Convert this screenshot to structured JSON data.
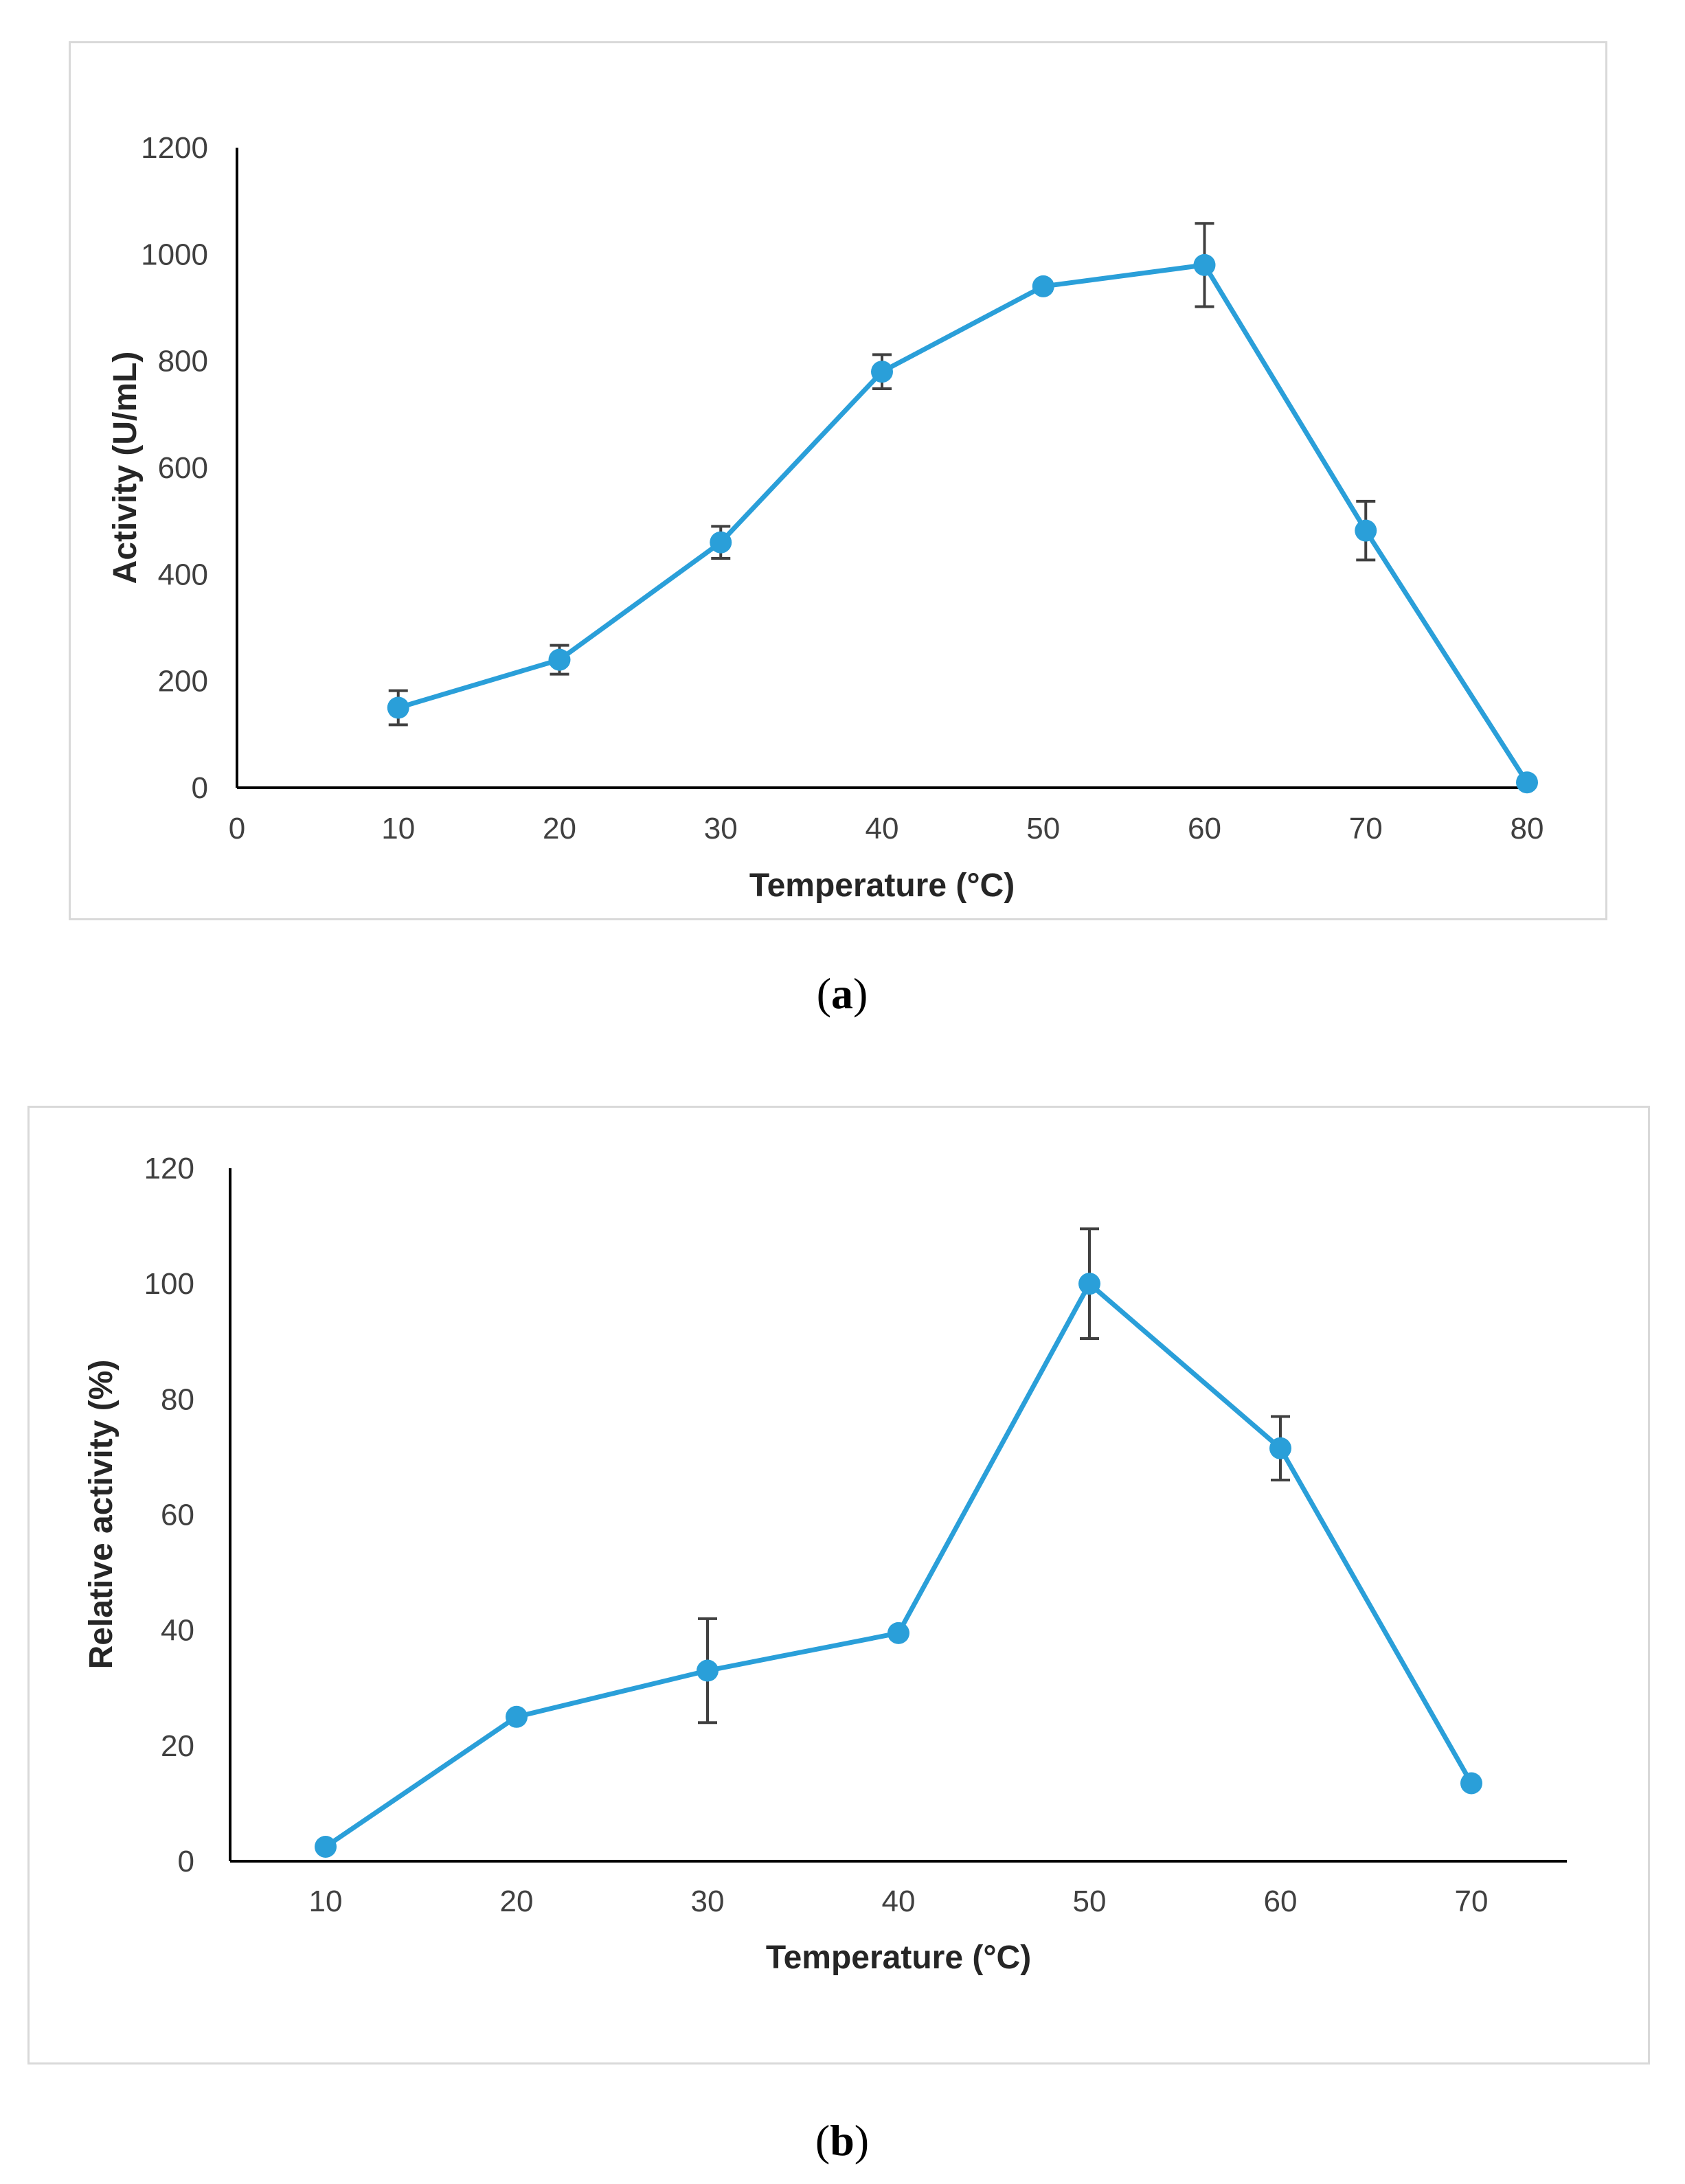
{
  "charts": [
    {
      "id": "a",
      "caption": "a",
      "chart_data": {
        "type": "line",
        "x": [
          10,
          20,
          30,
          40,
          50,
          60,
          70,
          80
        ],
        "series": [
          {
            "values": [
              150,
              240,
              460,
              780,
              940,
              980,
              482,
              10
            ],
            "errors": [
              32,
              27,
              30,
              32,
              8,
              78,
              55,
              0
            ]
          }
        ],
        "xlabel": "Temperature (°C)",
        "ylabel": "Activity (U/mL)",
        "xlim": [
          0,
          80
        ],
        "ylim": [
          0,
          1200
        ],
        "xticks": [
          0,
          10,
          20,
          30,
          40,
          50,
          60,
          70,
          80
        ],
        "yticks": [
          0,
          200,
          400,
          600,
          800,
          1000,
          1200
        ],
        "grid": false,
        "color": "#2a9fd9"
      }
    },
    {
      "id": "b",
      "caption": "b",
      "chart_data": {
        "type": "line",
        "x": [
          10,
          20,
          30,
          40,
          50,
          60,
          70
        ],
        "series": [
          {
            "values": [
              2.5,
              25,
              33,
              39.5,
              100,
              71.5,
              13.5
            ],
            "errors": [
              0,
              0,
              9,
              0,
              9.5,
              5.5,
              0
            ]
          }
        ],
        "xlabel": "Temperature (°C)",
        "ylabel": "Relative activity (%)",
        "xlim": [
          5,
          75
        ],
        "ylim": [
          0,
          120
        ],
        "xticks": [
          10,
          20,
          30,
          40,
          50,
          60,
          70
        ],
        "yticks": [
          0,
          20,
          40,
          60,
          80,
          100,
          120
        ],
        "grid": false,
        "color": "#2a9fd9"
      }
    }
  ]
}
